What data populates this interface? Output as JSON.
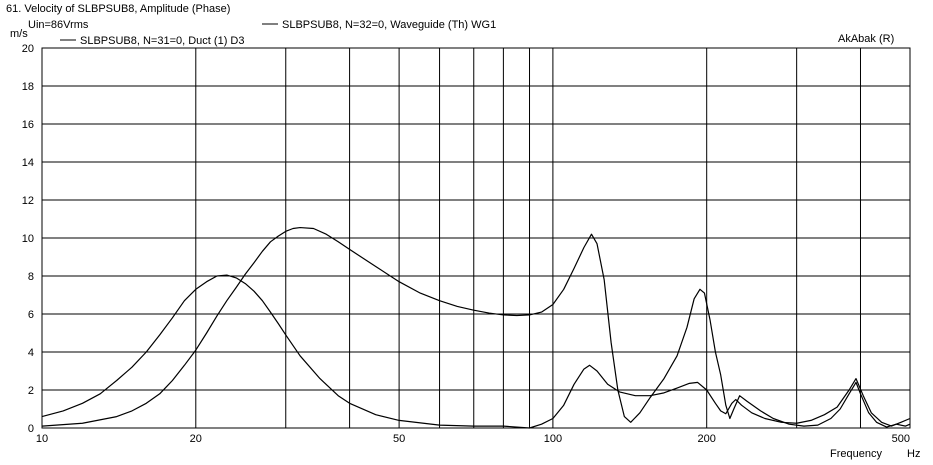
{
  "chart_data": {
    "type": "line",
    "title": "61. Velocity of SLBPSUB8, Amplitude (Phase)",
    "subtitle": "Uin=86Vrms",
    "watermark": "AkAbak (R)",
    "ylabel_unit": "m/s",
    "xlabel": "Frequency",
    "xunit": "Hz",
    "x_scale": "log",
    "xlim": [
      10,
      500
    ],
    "ylim": [
      0,
      20
    ],
    "grid": true,
    "x_major_ticks": [
      10,
      20,
      30,
      40,
      50,
      60,
      70,
      80,
      90,
      100,
      200,
      300,
      400,
      500
    ],
    "x_tick_labels": [
      {
        "value": 10,
        "label": "10"
      },
      {
        "value": 20,
        "label": "20"
      },
      {
        "value": 50,
        "label": "50"
      },
      {
        "value": 100,
        "label": "100"
      },
      {
        "value": 200,
        "label": "200"
      },
      {
        "value": 500,
        "label": "500"
      }
    ],
    "y_ticks": [
      0,
      2,
      4,
      6,
      8,
      10,
      12,
      14,
      16,
      18,
      20
    ],
    "y_tick_labels": [
      "0",
      "2",
      "4",
      "6",
      "8",
      "10",
      "12",
      "14",
      "16",
      "18",
      "20"
    ],
    "series": [
      {
        "name": "SLBPSUB8, N=31=0, Duct (1) D3",
        "color": "#000000",
        "points": [
          [
            10,
            0.6
          ],
          [
            11,
            0.9
          ],
          [
            12,
            1.3
          ],
          [
            13,
            1.8
          ],
          [
            14,
            2.5
          ],
          [
            15,
            3.2
          ],
          [
            16,
            4.0
          ],
          [
            17,
            4.9
          ],
          [
            18,
            5.8
          ],
          [
            19,
            6.7
          ],
          [
            20,
            7.3
          ],
          [
            21,
            7.7
          ],
          [
            22,
            8.0
          ],
          [
            23,
            8.05
          ],
          [
            24,
            7.9
          ],
          [
            25,
            7.6
          ],
          [
            26,
            7.2
          ],
          [
            27,
            6.7
          ],
          [
            28,
            6.1
          ],
          [
            29,
            5.5
          ],
          [
            30,
            4.9
          ],
          [
            32,
            3.8
          ],
          [
            35,
            2.6
          ],
          [
            38,
            1.7
          ],
          [
            40,
            1.3
          ],
          [
            45,
            0.7
          ],
          [
            50,
            0.4
          ],
          [
            60,
            0.15
          ],
          [
            70,
            0.1
          ],
          [
            80,
            0.1
          ],
          [
            90,
            0.0
          ],
          [
            95,
            0.2
          ],
          [
            100,
            0.5
          ],
          [
            105,
            1.2
          ],
          [
            110,
            2.3
          ],
          [
            115,
            3.1
          ],
          [
            118,
            3.3
          ],
          [
            122,
            3.0
          ],
          [
            128,
            2.3
          ],
          [
            135,
            1.9
          ],
          [
            145,
            1.7
          ],
          [
            155,
            1.7
          ],
          [
            165,
            1.85
          ],
          [
            175,
            2.1
          ],
          [
            185,
            2.35
          ],
          [
            192,
            2.4
          ],
          [
            200,
            2.0
          ],
          [
            208,
            1.3
          ],
          [
            213,
            0.9
          ],
          [
            218,
            0.75
          ],
          [
            224,
            1.3
          ],
          [
            228,
            1.5
          ],
          [
            234,
            1.2
          ],
          [
            245,
            0.8
          ],
          [
            260,
            0.5
          ],
          [
            280,
            0.3
          ],
          [
            300,
            0.25
          ],
          [
            320,
            0.4
          ],
          [
            340,
            0.7
          ],
          [
            360,
            1.1
          ],
          [
            380,
            2.0
          ],
          [
            392,
            2.6
          ],
          [
            405,
            1.7
          ],
          [
            420,
            0.8
          ],
          [
            440,
            0.3
          ],
          [
            460,
            0.1
          ],
          [
            480,
            0.3
          ],
          [
            500,
            0.5
          ]
        ]
      },
      {
        "name": "SLBPSUB8, N=32=0, Waveguide (Th) WG1",
        "color": "#000000",
        "points": [
          [
            10,
            0.1
          ],
          [
            12,
            0.25
          ],
          [
            14,
            0.6
          ],
          [
            15,
            0.9
          ],
          [
            16,
            1.3
          ],
          [
            17,
            1.8
          ],
          [
            18,
            2.5
          ],
          [
            19,
            3.3
          ],
          [
            20,
            4.1
          ],
          [
            21,
            5.0
          ],
          [
            22,
            5.9
          ],
          [
            23,
            6.7
          ],
          [
            24,
            7.4
          ],
          [
            25,
            8.1
          ],
          [
            26,
            8.7
          ],
          [
            27,
            9.3
          ],
          [
            28,
            9.8
          ],
          [
            29,
            10.1
          ],
          [
            30,
            10.35
          ],
          [
            31,
            10.5
          ],
          [
            32,
            10.55
          ],
          [
            34,
            10.5
          ],
          [
            36,
            10.2
          ],
          [
            38,
            9.8
          ],
          [
            40,
            9.4
          ],
          [
            45,
            8.5
          ],
          [
            50,
            7.7
          ],
          [
            55,
            7.1
          ],
          [
            60,
            6.7
          ],
          [
            65,
            6.4
          ],
          [
            70,
            6.2
          ],
          [
            75,
            6.05
          ],
          [
            80,
            5.95
          ],
          [
            85,
            5.92
          ],
          [
            90,
            5.95
          ],
          [
            95,
            6.1
          ],
          [
            100,
            6.5
          ],
          [
            105,
            7.3
          ],
          [
            110,
            8.4
          ],
          [
            115,
            9.5
          ],
          [
            119,
            10.2
          ],
          [
            122,
            9.7
          ],
          [
            126,
            7.8
          ],
          [
            130,
            4.5
          ],
          [
            134,
            2.0
          ],
          [
            138,
            0.6
          ],
          [
            142,
            0.3
          ],
          [
            148,
            0.8
          ],
          [
            155,
            1.6
          ],
          [
            165,
            2.6
          ],
          [
            175,
            3.8
          ],
          [
            183,
            5.3
          ],
          [
            189,
            6.8
          ],
          [
            194,
            7.3
          ],
          [
            198,
            7.1
          ],
          [
            203,
            5.7
          ],
          [
            208,
            4.0
          ],
          [
            213,
            2.8
          ],
          [
            218,
            1.2
          ],
          [
            222,
            0.5
          ],
          [
            226,
            1.0
          ],
          [
            232,
            1.7
          ],
          [
            240,
            1.4
          ],
          [
            255,
            0.9
          ],
          [
            270,
            0.5
          ],
          [
            290,
            0.2
          ],
          [
            310,
            0.1
          ],
          [
            330,
            0.15
          ],
          [
            350,
            0.5
          ],
          [
            365,
            1.0
          ],
          [
            380,
            1.8
          ],
          [
            392,
            2.4
          ],
          [
            400,
            1.8
          ],
          [
            415,
            0.8
          ],
          [
            430,
            0.3
          ],
          [
            450,
            0.05
          ],
          [
            470,
            0.2
          ],
          [
            490,
            0.1
          ],
          [
            500,
            0.2
          ]
        ]
      }
    ],
    "legend": [
      {
        "label": "SLBPSUB8, N=32=0, Waveguide (Th) WG1"
      },
      {
        "label": "SLBPSUB8, N=31=0, Duct (1) D3"
      }
    ]
  }
}
